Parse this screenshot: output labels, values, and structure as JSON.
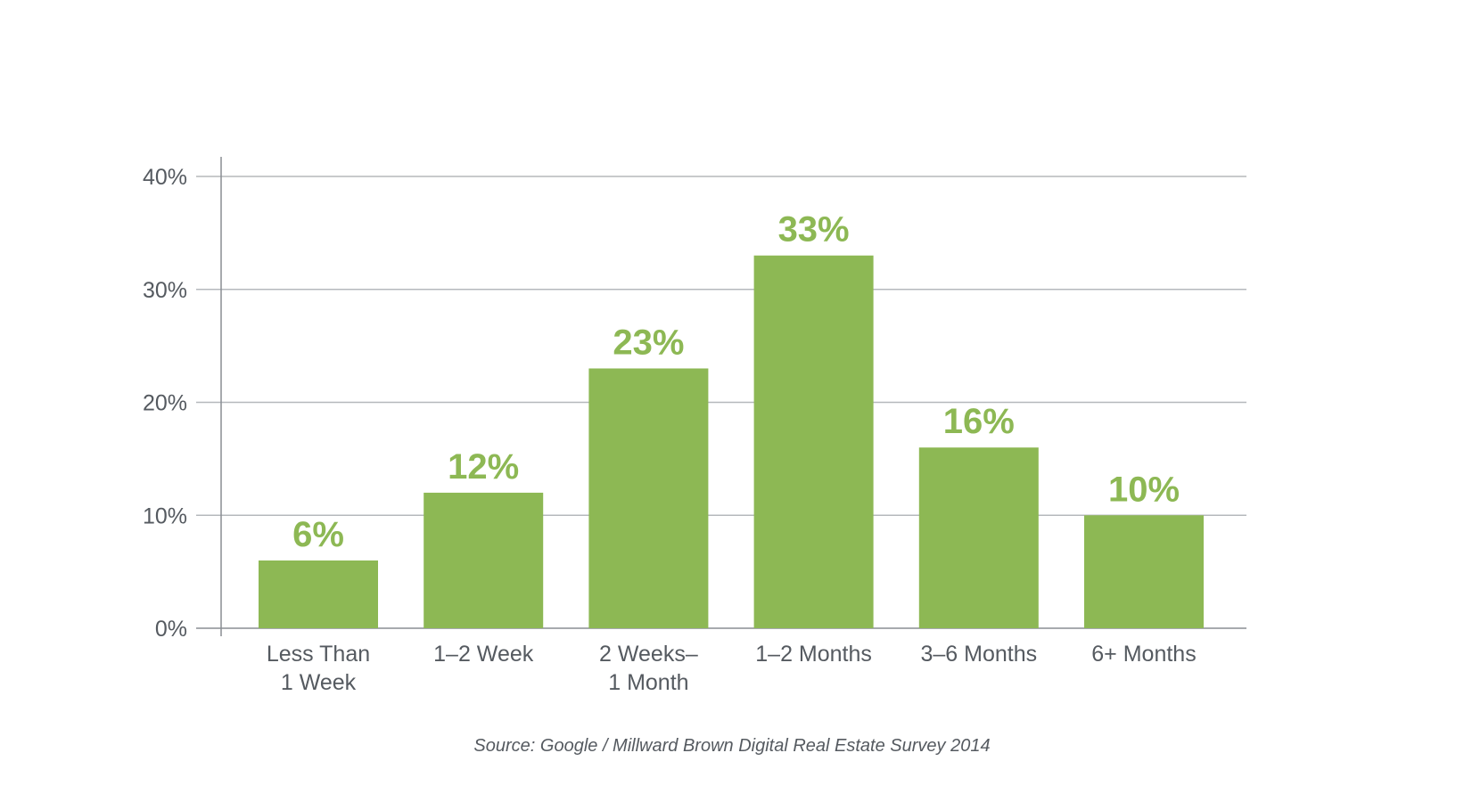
{
  "chart_data": {
    "type": "bar",
    "categories": [
      [
        "Less Than",
        "1 Week"
      ],
      [
        "1–2 Week"
      ],
      [
        "2 Weeks–",
        "1 Month"
      ],
      [
        "1–2 Months"
      ],
      [
        "3–6 Months"
      ],
      [
        "6+ Months"
      ]
    ],
    "values": [
      6,
      12,
      23,
      33,
      16,
      10
    ],
    "value_labels": [
      "6%",
      "12%",
      "23%",
      "33%",
      "16%",
      "10%"
    ],
    "ylim": [
      0,
      40
    ],
    "yticks": [
      0,
      10,
      20,
      30,
      40
    ],
    "ytick_labels": [
      "0%",
      "10%",
      "20%",
      "30%",
      "40%"
    ],
    "grid": true,
    "colors": {
      "bar": "#8db854",
      "value_label": "#8db854",
      "grid": "#b5b8bc",
      "axis": "#8a8e93"
    }
  },
  "source": "Source: Google / Millward Brown Digital Real Estate Survey 2014"
}
